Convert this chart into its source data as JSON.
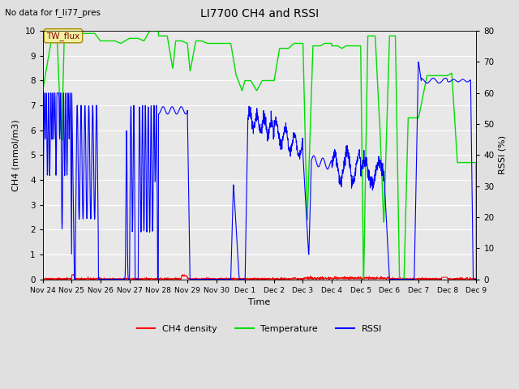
{
  "title": "LI7700 CH4 and RSSI",
  "top_left_text": "No data for f_li77_pres",
  "box_label": "TW_flux",
  "xlabel": "Time",
  "ylabel_left": "CH4 (mmol/m3)",
  "ylabel_right": "RSSI (%)",
  "ylim_left": [
    0,
    10.0
  ],
  "ylim_right": [
    0,
    80
  ],
  "yticks_left": [
    0.0,
    1.0,
    2.0,
    3.0,
    4.0,
    5.0,
    6.0,
    7.0,
    8.0,
    9.0,
    10.0
  ],
  "yticks_right": [
    0,
    10,
    20,
    30,
    40,
    50,
    60,
    70,
    80
  ],
  "xtick_labels": [
    "Nov 24",
    "Nov 25",
    "Nov 26",
    "Nov 27",
    "Nov 28",
    "Nov 29",
    "Nov 30",
    "Dec 1",
    "Dec 2",
    "Dec 3",
    "Dec 4",
    "Dec 5",
    "Dec 6",
    "Dec 7",
    "Dec 8",
    "Dec 9"
  ],
  "bg_color": "#e0e0e0",
  "plot_bg_color": "#e8e8e8",
  "grid_color": "#ffffff",
  "ch4_color": "#ff0000",
  "temp_color": "#00dd00",
  "rssi_color": "#0000ff",
  "legend_labels": [
    "CH4 density",
    "Temperature",
    "RSSI"
  ],
  "n_points": 2000
}
